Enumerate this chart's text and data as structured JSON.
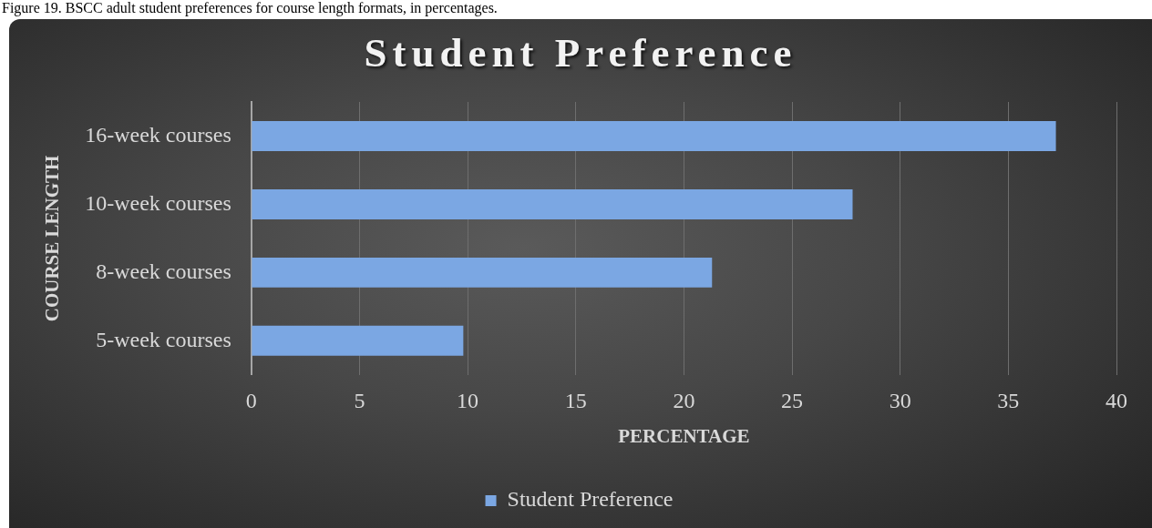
{
  "chart_data": {
    "type": "bar",
    "orientation": "horizontal",
    "title": "Student Preference",
    "xlabel": "PERCENTAGE",
    "ylabel": "COURSE LENGTH",
    "categories": [
      "16-week courses",
      "10-week courses",
      "8-week courses",
      "5-week courses"
    ],
    "series": [
      {
        "name": "Student Preference",
        "color": "#7ba7e3",
        "values": [
          37.2,
          27.8,
          21.3,
          9.8
        ]
      }
    ],
    "xlim": [
      0,
      40
    ],
    "xticks": [
      0,
      5,
      10,
      15,
      20,
      25,
      30,
      35,
      40
    ],
    "grid": "x",
    "legend": "bottom",
    "annotations": [
      "Figure 19. BSCC adult student preferences for course length formats, in percentages."
    ]
  }
}
